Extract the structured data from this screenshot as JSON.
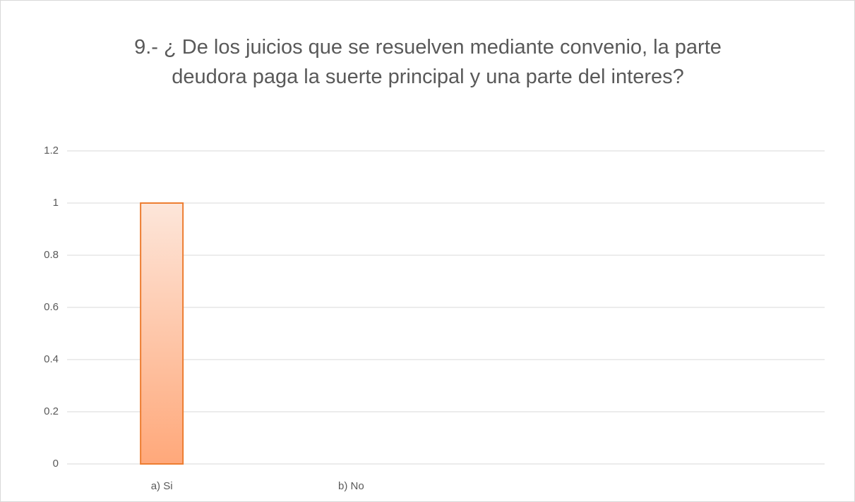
{
  "chart_data": {
    "type": "bar",
    "title": "9.- ¿ De los juicios que se resuelven mediante convenio, la parte deudora paga la suerte principal y una parte del interes?",
    "categories": [
      "a) Si",
      "b) No",
      null,
      null
    ],
    "values": [
      1,
      0,
      null,
      null
    ],
    "color": "#ed7d31",
    "ylim": [
      0,
      1.2
    ],
    "yticks": [
      0,
      0.2,
      0.4,
      0.6,
      0.8,
      1,
      1.2
    ],
    "grid": true
  }
}
